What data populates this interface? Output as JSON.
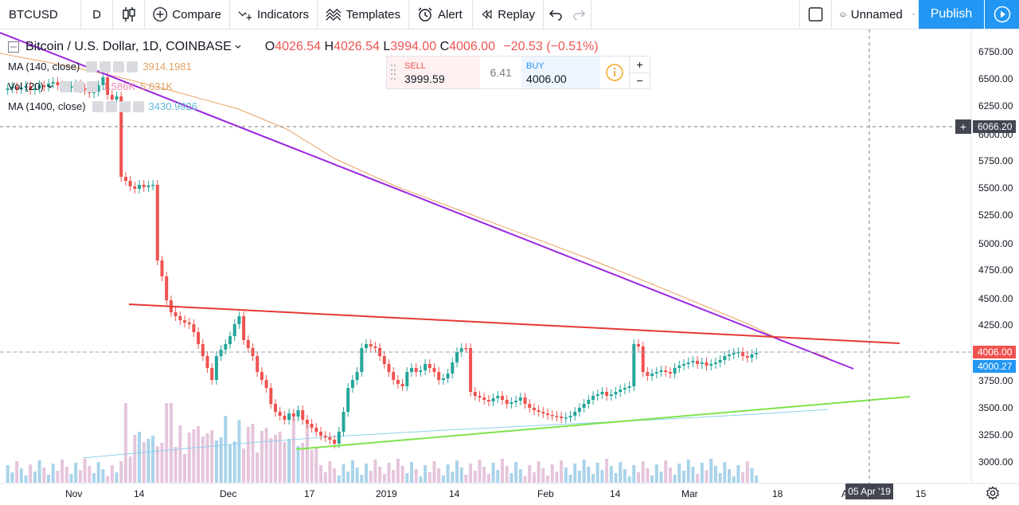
{
  "toolbar": {
    "symbol": "BTCUSD",
    "interval": "D",
    "compare_label": "Compare",
    "indicators_label": "Indicators",
    "templates_label": "Templates",
    "alert_label": "Alert",
    "replay_label": "Replay",
    "layout_name": "Unnamed",
    "publish_label": "Publish"
  },
  "legend": {
    "title": "Bitcoin / U.S. Dollar, 1D, COINBASE",
    "open_key": "O",
    "open": "4026.54",
    "high_key": "H",
    "high": "4026.54",
    "low_key": "L",
    "low": "3994.00",
    "close_key": "C",
    "close": "4006.00",
    "change": "−20.53 (−0.51%)",
    "ma140_label": "MA (140, close)",
    "ma140_value": "3914.1981",
    "vol_label": "Vol (20)",
    "vol_value1": "1.586K",
    "vol_value2": "5.631K",
    "ma1400_label": "MA (1400, close)",
    "ma1400_value": "3430.9926"
  },
  "trade": {
    "sell_label": "SELL",
    "sell_price": "3999.59",
    "spread": "6.41",
    "buy_label": "BUY",
    "buy_price": "4006.00",
    "plus": "+",
    "minus": "−"
  },
  "price_axis": {
    "ticks": [
      "6750.00",
      "6500.00",
      "6250.00",
      "6000.00",
      "5750.00",
      "5500.00",
      "5250.00",
      "5000.00",
      "4750.00",
      "4500.00",
      "4250.00",
      "3750.00",
      "3500.00",
      "3250.00",
      "3000.00"
    ],
    "crosshair_price": "6066.20",
    "last_price": "4006.00",
    "bid_price": "4000.27"
  },
  "time_axis": {
    "ticks": [
      "Nov",
      "14",
      "Dec",
      "17",
      "2019",
      "14",
      "Feb",
      "14",
      "Mar",
      "18",
      "A",
      "15"
    ],
    "crosshair_date": "05 Apr '19"
  },
  "colors": {
    "up": "#26a69a",
    "down": "#ef5350",
    "purple_line": "#9c27e0",
    "red_line": "#e53935",
    "green_line": "#7de34a",
    "ma140": "#e8a464",
    "ma1400": "#8fd0ea",
    "accent": "#2196f3"
  },
  "icons": [
    "plus-circle-icon",
    "indicators-icon",
    "templates-icon",
    "alarm-clock-icon",
    "replay-icon",
    "undo-icon",
    "redo-icon",
    "square-icon",
    "cloud-icon",
    "gear-icon",
    "fullscreen-icon",
    "camera-icon",
    "play-icon"
  ]
}
